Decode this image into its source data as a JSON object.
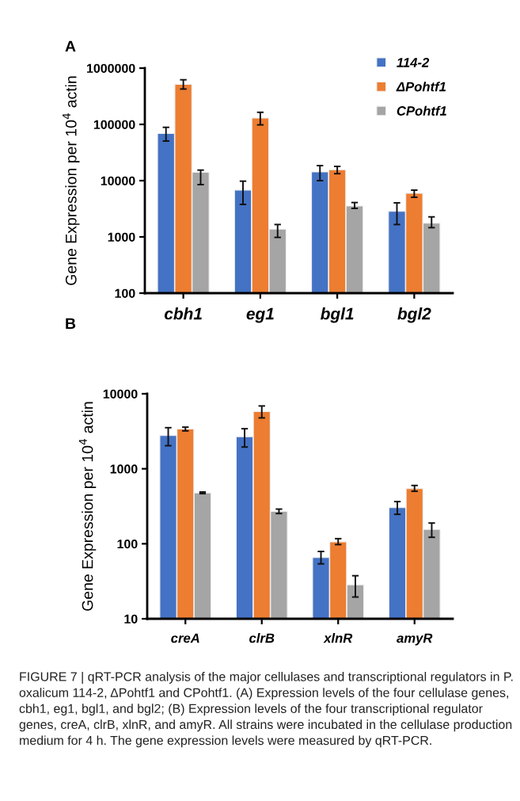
{
  "chart_data": [
    {
      "type": "bar",
      "title": "A",
      "ylabel": "Gene Expression per 10$^{4}$ actin",
      "categories": [
        "cbh1",
        "eg1",
        "bgl1",
        "bgl2"
      ],
      "log": "y",
      "ylim": [
        100,
        1000000
      ],
      "yticks": [
        100,
        1000,
        10000,
        100000,
        1000000
      ],
      "legend": "top right",
      "grid": false,
      "series": [
        {
          "name": "114-2",
          "color": "#4472c4",
          "values": [
            69000,
            6800,
            14300,
            2850
          ],
          "errors": [
            [
              50600,
              88700
            ],
            [
              3780,
              9790
            ],
            [
              10000,
              18500
            ],
            [
              1660,
              4030
            ]
          ]
        },
        {
          "name": "ΔPohtf1",
          "color": "#ed7d31",
          "values": [
            517000,
            130000,
            15600,
            5950
          ],
          "errors": [
            [
              425000,
              621000
            ],
            [
              98000,
              164000
            ],
            [
              13300,
              17900
            ],
            [
              5060,
              6780
            ]
          ]
        },
        {
          "name": "CPohtf1",
          "color": "#a5a5a5",
          "values": [
            14100,
            1370,
            3540,
            1750
          ],
          "errors": [
            [
              8500,
              15400
            ],
            [
              980,
              1660
            ],
            [
              3210,
              4080
            ],
            [
              1460,
              2270
            ]
          ]
        }
      ]
    },
    {
      "type": "bar",
      "title": "B",
      "ylabel": "Gene Expression per 10$^{4}$ actin",
      "categories": [
        "creA",
        "clrB",
        "xlnR",
        "amyR"
      ],
      "log": "y",
      "ylim": [
        10,
        10000
      ],
      "yticks": [
        10,
        100,
        1000,
        10000
      ],
      "grid": false,
      "series": [
        {
          "color": "#4472c4",
          "values": [
            2770,
            2680,
            65.5,
            303
          ],
          "errors": [
            [
              2030,
              3530
            ],
            [
              1950,
              3420
            ],
            [
              54,
              79
            ],
            [
              247,
              365
            ]
          ]
        },
        {
          "color": "#ed7d31",
          "values": [
            3390,
            5800,
            106,
            543
          ],
          "errors": [
            [
              3200,
              3590
            ],
            [
              4770,
              6880
            ],
            [
              97.5,
              117
            ],
            [
              501,
              599
            ]
          ]
        },
        {
          "color": "#a5a5a5",
          "values": [
            477,
            270,
            28.4,
            155
          ],
          "errors": [
            [
              466,
              490
            ],
            [
              253,
              290
            ],
            [
              19.5,
              37.5
            ],
            [
              122,
              189
            ]
          ]
        }
      ],
      "annotations": [
        "FIGURE 7 | qRT-PCR analysis of the major cellulases and transcriptional regulators in P. oxalicum 114-2, ΔPohtf1 and CPohtf1. (A) Expression levels of the four cellulase genes, cbh1, eg1, bgl1, and bgl2; (B) Expression levels of the four transcriptional regulator genes, creA, clrB, xlnR, and amyR. All strains were incubated in the cellulase production medium for 4 h. The gene expression levels were measured by qRT-PCR."
      ]
    }
  ]
}
